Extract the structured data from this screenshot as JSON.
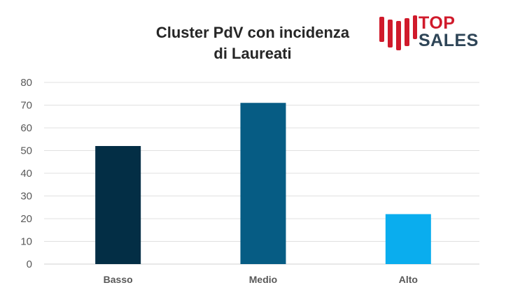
{
  "logo": {
    "line1": "TOP",
    "line2": "SALES",
    "colors": {
      "red": "#d01a2b",
      "navy": "#2e4557"
    }
  },
  "chart_data": {
    "type": "bar",
    "title": "Cluster PdV con incidenza di Laureati",
    "title_lines": [
      "Cluster PdV con incidenza",
      "di Laureati"
    ],
    "categories": [
      "Basso",
      "Medio",
      "Alto"
    ],
    "values": [
      52,
      71,
      22
    ],
    "colors": [
      "#032e45",
      "#065c84",
      "#0aadee"
    ],
    "xlabel": "",
    "ylabel": "",
    "ylim": [
      0,
      80
    ],
    "yticks": [
      0,
      10,
      20,
      30,
      40,
      50,
      60,
      70,
      80
    ],
    "grid": true,
    "legend": "none"
  }
}
